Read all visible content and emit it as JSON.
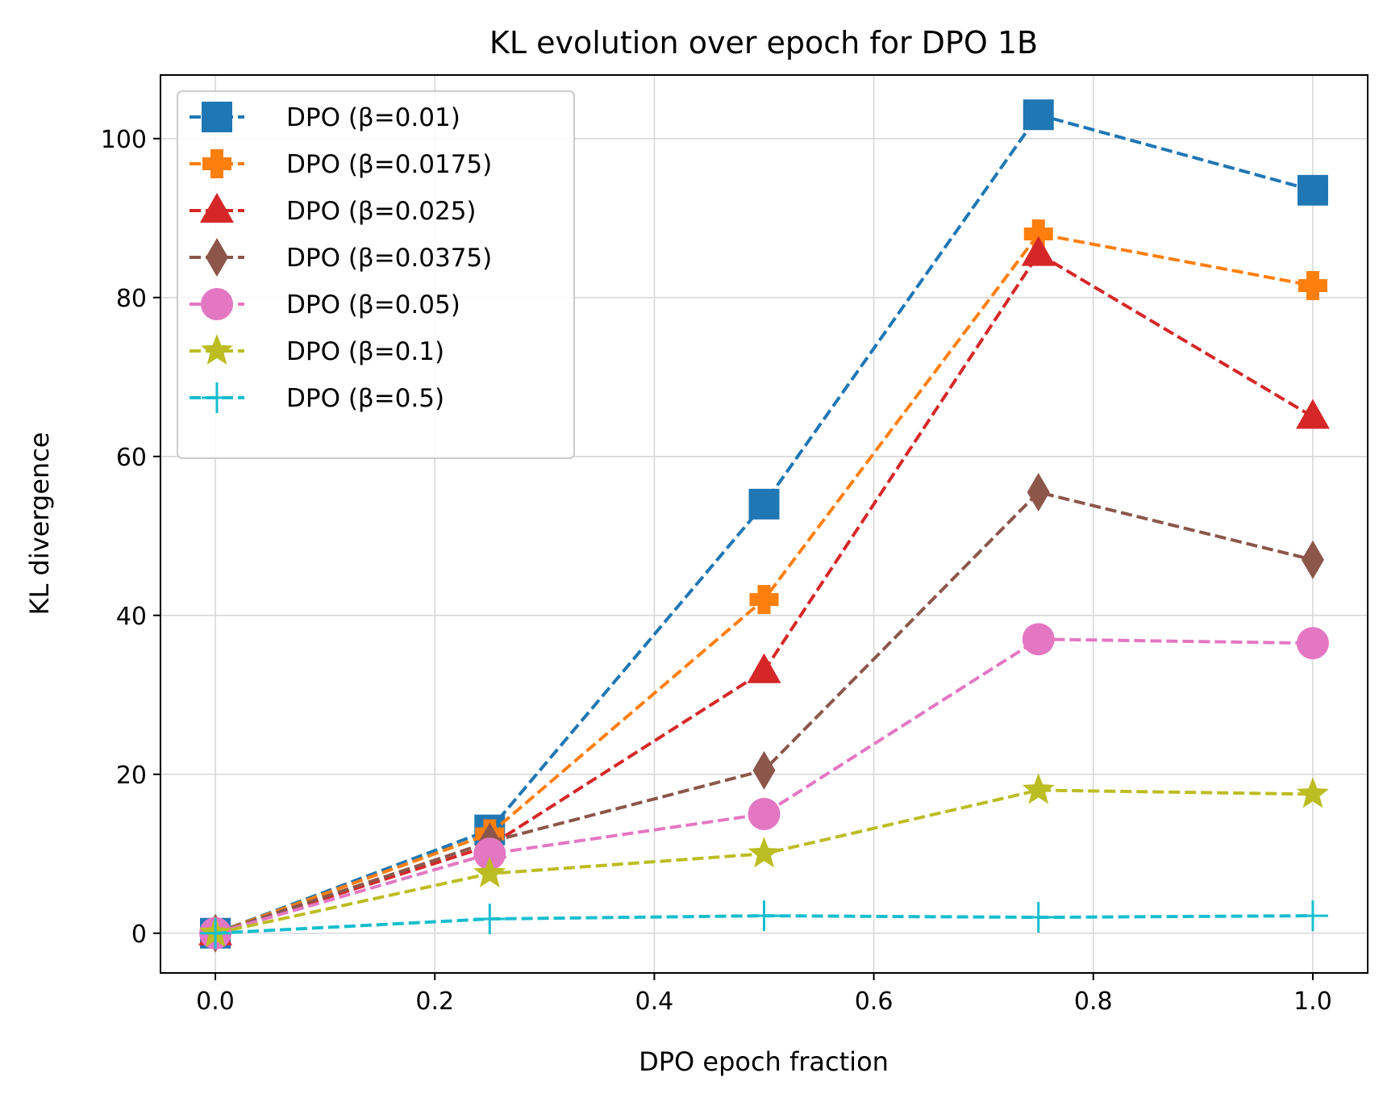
{
  "chart_data": {
    "type": "line",
    "title": "KL evolution over epoch for DPO 1B",
    "xlabel": "DPO epoch fraction",
    "ylabel": "KL divergence",
    "x": [
      0.0,
      0.25,
      0.5,
      0.75,
      1.0
    ],
    "xlim": [
      -0.05,
      1.05
    ],
    "ylim": [
      -5,
      108
    ],
    "xticks": [
      0.0,
      0.2,
      0.4,
      0.6,
      0.8,
      1.0
    ],
    "xtick_labels": [
      "0.0",
      "0.2",
      "0.4",
      "0.6",
      "0.8",
      "1.0"
    ],
    "yticks": [
      0,
      20,
      40,
      60,
      80,
      100
    ],
    "ytick_labels": [
      "0",
      "20",
      "40",
      "60",
      "80",
      "100"
    ],
    "grid": true,
    "legend_position": "top-left",
    "series": [
      {
        "name": "DPO (β=0.01)",
        "color": "#1f77b4",
        "marker": "square",
        "values": [
          0,
          13,
          54,
          103,
          93.5
        ]
      },
      {
        "name": "DPO (β=0.0175)",
        "color": "#ff7f0e",
        "marker": "plus-filled",
        "values": [
          0,
          12.5,
          42,
          88,
          81.5
        ]
      },
      {
        "name": "DPO (β=0.025)",
        "color": "#d62728",
        "marker": "triangle",
        "values": [
          0,
          11,
          33,
          85.5,
          65
        ]
      },
      {
        "name": "DPO (β=0.0375)",
        "color": "#8c564b",
        "marker": "diamond",
        "values": [
          0,
          11.5,
          20.5,
          55.5,
          47
        ]
      },
      {
        "name": "DPO (β=0.05)",
        "color": "#e377c2",
        "marker": "circle",
        "values": [
          0,
          10,
          15,
          37,
          36.5
        ]
      },
      {
        "name": "DPO (β=0.1)",
        "color": "#bcbd22",
        "marker": "star",
        "values": [
          0,
          7.5,
          10,
          18,
          17.5
        ]
      },
      {
        "name": "DPO (β=0.5)",
        "color": "#17becf",
        "marker": "plus",
        "values": [
          0,
          1.8,
          2.2,
          2.0,
          2.2
        ]
      }
    ]
  }
}
